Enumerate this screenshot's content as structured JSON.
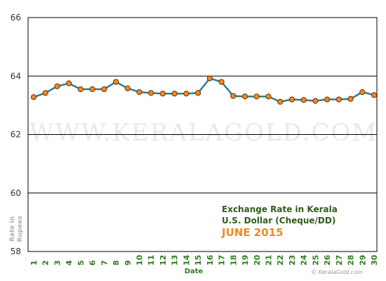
{
  "chart_data": {
    "type": "line",
    "title": "",
    "annotation": {
      "line1": "Exchange Rate in Kerala",
      "line2": "U.S. Dollar (Cheque/DD)",
      "line3": "JUNE 2015"
    },
    "xlabel": "Date",
    "ylabel_line1": "Rate in",
    "ylabel_line2": "Rupees",
    "watermark": "WWW.KERALAGOLD.COM",
    "watermark_small": "© KeralaGold.com",
    "x": [
      "1",
      "2",
      "3",
      "4",
      "5",
      "6",
      "7",
      "8",
      "9",
      "10",
      "11",
      "12",
      "13",
      "14",
      "15",
      "16",
      "17",
      "18",
      "19",
      "20",
      "21",
      "22",
      "23",
      "24",
      "25",
      "26",
      "27",
      "28",
      "29",
      "30"
    ],
    "series": [
      {
        "name": "",
        "values": [
          63.28,
          63.42,
          63.65,
          63.75,
          63.55,
          63.55,
          63.55,
          63.8,
          63.58,
          63.45,
          63.42,
          63.4,
          63.4,
          63.4,
          63.42,
          63.92,
          63.8,
          63.32,
          63.3,
          63.3,
          63.3,
          63.12,
          63.2,
          63.18,
          63.15,
          63.2,
          63.2,
          63.22,
          63.45,
          63.35
        ]
      }
    ],
    "ylim": [
      58,
      66
    ],
    "yticks": [
      58,
      60,
      62,
      64,
      66
    ],
    "grid": true,
    "colors": {
      "line": "#2e7d8a",
      "marker_fill": "#f08a24",
      "marker_edge": "#6b2e00",
      "grid": "#000000",
      "axis_text": "#2e7d1f"
    }
  }
}
